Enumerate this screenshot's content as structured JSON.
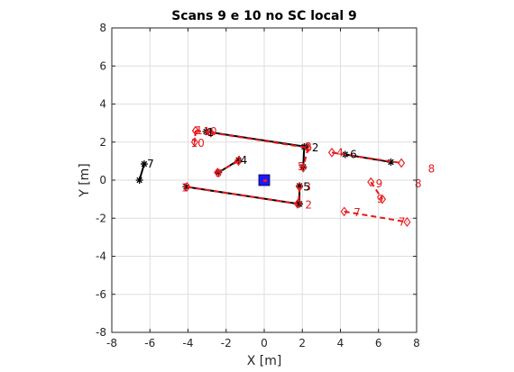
{
  "chart_data": {
    "type": "line",
    "title": "Scans 9 e 10 no SC local 9",
    "xlabel": "X [m]",
    "ylabel": "Y [m]",
    "xlim": [
      -8,
      8
    ],
    "ylim": [
      -8,
      8
    ],
    "xticks": [
      -8,
      -6,
      -4,
      -2,
      0,
      2,
      4,
      6,
      8
    ],
    "yticks": [
      -8,
      -6,
      -4,
      -2,
      0,
      2,
      4,
      6,
      8
    ],
    "grid": true,
    "colors": {
      "scan_black": "#000000",
      "scan_red": "#e8191c",
      "origin": "#1a1aff",
      "axes": "#262626",
      "grid": "#dedede"
    },
    "series": [
      {
        "color": "#000000",
        "marker": "*",
        "linestyle": "solid",
        "segments": [
          [
            [
              -6.55,
              0.0
            ],
            [
              -6.3,
              0.85
            ]
          ],
          [
            [
              -4.1,
              -0.35
            ],
            [
              1.8,
              -1.25
            ]
          ],
          [
            [
              -3.05,
              2.55
            ],
            [
              2.2,
              1.75
            ]
          ],
          [
            [
              1.85,
              -0.3
            ],
            [
              1.85,
              -1.25
            ]
          ],
          [
            [
              -2.4,
              0.4
            ],
            [
              -1.35,
              1.05
            ]
          ],
          [
            [
              2.1,
              1.75
            ],
            [
              2.05,
              0.7
            ]
          ],
          [
            [
              4.25,
              1.35
            ],
            [
              6.65,
              0.95
            ]
          ]
        ]
      },
      {
        "color": "#e8191c",
        "marker": "diamond",
        "linestyle": "dashed",
        "segments": [
          [
            [
              -3.6,
              2.6
            ],
            [
              -2.8,
              2.5
            ]
          ],
          [
            [
              -3.6,
              2.6
            ],
            [
              -3.65,
              2.0
            ]
          ],
          [
            [
              -4.05,
              -0.35
            ],
            [
              1.75,
              -1.25
            ]
          ],
          [
            [
              -2.45,
              0.4
            ],
            [
              -1.35,
              1.0
            ]
          ],
          [
            [
              -2.8,
              2.5
            ],
            [
              2.3,
              1.7
            ]
          ],
          [
            [
              1.85,
              -0.35
            ],
            [
              1.8,
              -1.2
            ]
          ],
          [
            [
              2.3,
              1.7
            ],
            [
              2.05,
              0.65
            ]
          ],
          [
            [
              3.55,
              1.45
            ],
            [
              7.2,
              0.9
            ]
          ],
          [
            [
              5.6,
              -0.1
            ],
            [
              6.2,
              -1.0
            ]
          ],
          [
            [
              4.2,
              -1.65
            ],
            [
              7.5,
              -2.2
            ]
          ]
        ]
      }
    ],
    "origin_marker": {
      "x": 0,
      "y": 0,
      "shape": "square"
    },
    "annotations": [
      {
        "text": "1",
        "x": -3.6,
        "y": 2.6,
        "color": "#e8191c"
      },
      {
        "text": "10",
        "x": -3.2,
        "y": 2.55,
        "color": "#e8191c"
      },
      {
        "text": "1",
        "x": -3.0,
        "y": 2.5,
        "color": "#000000"
      },
      {
        "text": "10",
        "x": -3.85,
        "y": 1.95,
        "color": "#e8191c"
      },
      {
        "text": "7",
        "x": -6.15,
        "y": 0.85,
        "color": "#000000"
      },
      {
        "text": "4",
        "x": -1.55,
        "y": 1.05,
        "color": "#e8191c"
      },
      {
        "text": "4",
        "x": -1.25,
        "y": 1.05,
        "color": "#000000"
      },
      {
        "text": "6",
        "x": -2.6,
        "y": 0.35,
        "color": "#e8191c"
      },
      {
        "text": "1",
        "x": -4.35,
        "y": -0.4,
        "color": "#e8191c"
      },
      {
        "text": "2",
        "x": 2.15,
        "y": 1.75,
        "color": "#e8191c"
      },
      {
        "text": "2",
        "x": 2.5,
        "y": 1.7,
        "color": "#000000"
      },
      {
        "text": "5",
        "x": 1.75,
        "y": 0.7,
        "color": "#e8191c"
      },
      {
        "text": "4",
        "x": 3.8,
        "y": 1.45,
        "color": "#e8191c"
      },
      {
        "text": "6",
        "x": 4.5,
        "y": 1.35,
        "color": "#000000"
      },
      {
        "text": "3",
        "x": 2.1,
        "y": -0.35,
        "color": "#e8191c"
      },
      {
        "text": "5",
        "x": 2.05,
        "y": -0.35,
        "color": "#000000"
      },
      {
        "text": "2",
        "x": 2.15,
        "y": -1.3,
        "color": "#e8191c"
      },
      {
        "text": "8",
        "x": 8.6,
        "y": 0.6,
        "color": "#e8191c"
      },
      {
        "text": "8",
        "x": 7.9,
        "y": -0.2,
        "color": "#e8191c"
      },
      {
        "text": "9",
        "x": 5.85,
        "y": -0.2,
        "color": "#e8191c"
      },
      {
        "text": "9",
        "x": 5.9,
        "y": -1.0,
        "color": "#e8191c"
      },
      {
        "text": "7",
        "x": 4.7,
        "y": -1.7,
        "color": "#e8191c"
      },
      {
        "text": "7",
        "x": 7.05,
        "y": -2.2,
        "color": "#e8191c"
      }
    ]
  }
}
